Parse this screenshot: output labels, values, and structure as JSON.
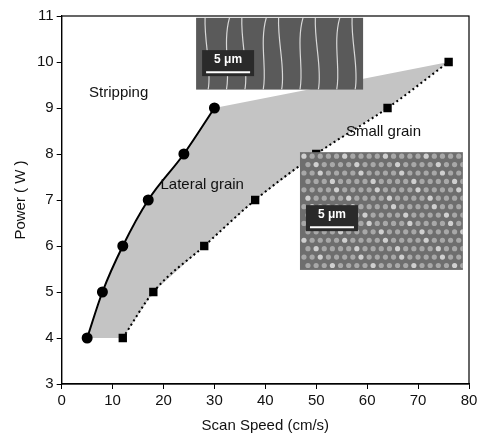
{
  "chart_data": {
    "type": "scatter",
    "x_label": "Scan Speed (cm/s)",
    "y_label": "Power ( W )",
    "series": [
      {
        "x": [
          5,
          8,
          12,
          17,
          24,
          30
        ],
        "values": [
          4,
          5,
          6,
          7,
          8,
          9
        ],
        "color": "#000000",
        "marker": "circle",
        "line_style": "solid"
      },
      {
        "x": [
          12,
          18,
          28,
          38,
          50,
          64,
          76
        ],
        "values": [
          4,
          5,
          6,
          7,
          8,
          9,
          10
        ],
        "color": "#000000",
        "marker": "square",
        "line_style": "dotted"
      }
    ],
    "annotations": [
      "Stripping",
      "Lateral grain",
      "Small grain"
    ],
    "insets": [
      {
        "scale_label": "5 μm"
      },
      {
        "scale_label": "5 μm"
      }
    ],
    "xlim": [
      0,
      80
    ],
    "xticks": [
      0,
      10,
      20,
      30,
      40,
      50,
      60,
      70,
      80
    ],
    "ylim": [
      3,
      11
    ],
    "yticks": [
      3,
      4,
      5,
      6,
      7,
      8,
      9,
      10,
      11
    ],
    "grid": false
  }
}
